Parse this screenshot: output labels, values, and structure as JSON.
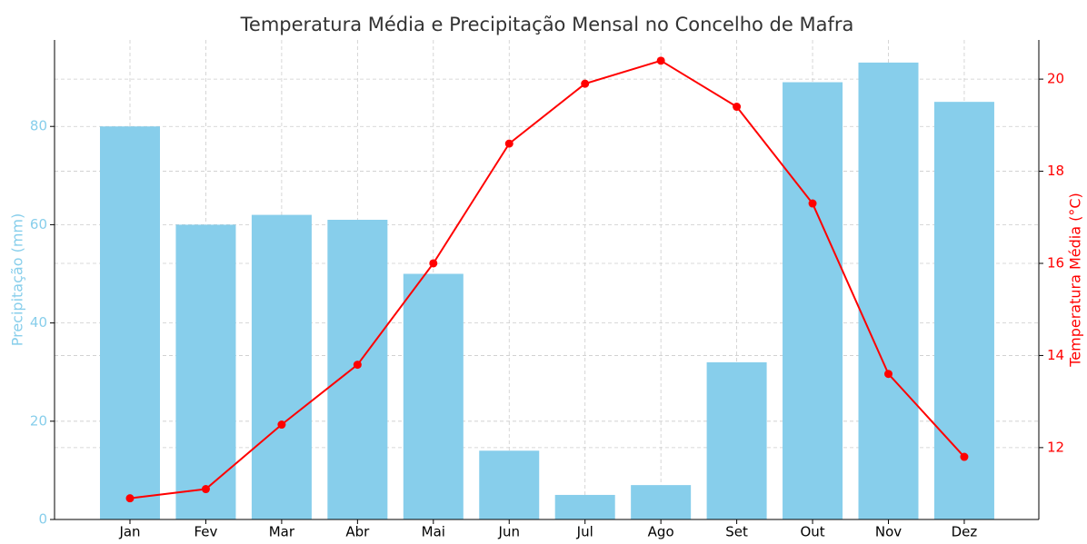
{
  "chart_data": {
    "type": "bar-line",
    "title": "Temperatura Média e Precipitação Mensal no Concelho de Mafra",
    "categories": [
      "Jan",
      "Fev",
      "Mar",
      "Abr",
      "Mai",
      "Jun",
      "Jul",
      "Ago",
      "Set",
      "Out",
      "Nov",
      "Dez"
    ],
    "series": [
      {
        "name": "Precipitação (mm)",
        "type": "bar",
        "color": "#87ceeb",
        "values": [
          80,
          60,
          62,
          61,
          50,
          14,
          5,
          7,
          32,
          89,
          93,
          85
        ]
      },
      {
        "name": "Temperatura Média (°C)",
        "type": "line",
        "axis": "y2",
        "color": "#ff0000",
        "values": [
          10.9,
          11.1,
          12.5,
          13.8,
          16.0,
          18.6,
          19.9,
          20.4,
          19.4,
          17.3,
          13.6,
          11.8
        ]
      }
    ],
    "ylabel": "Precipitação (mm)",
    "y2label": "Temperatura Média (°C)",
    "ylim": [
      0,
      97.6
    ],
    "yticks": [
      0,
      20,
      40,
      60,
      80
    ],
    "y2lim": [
      10.44,
      20.85
    ],
    "y2ticks": [
      12,
      14,
      16,
      18,
      20
    ],
    "grid": true
  }
}
